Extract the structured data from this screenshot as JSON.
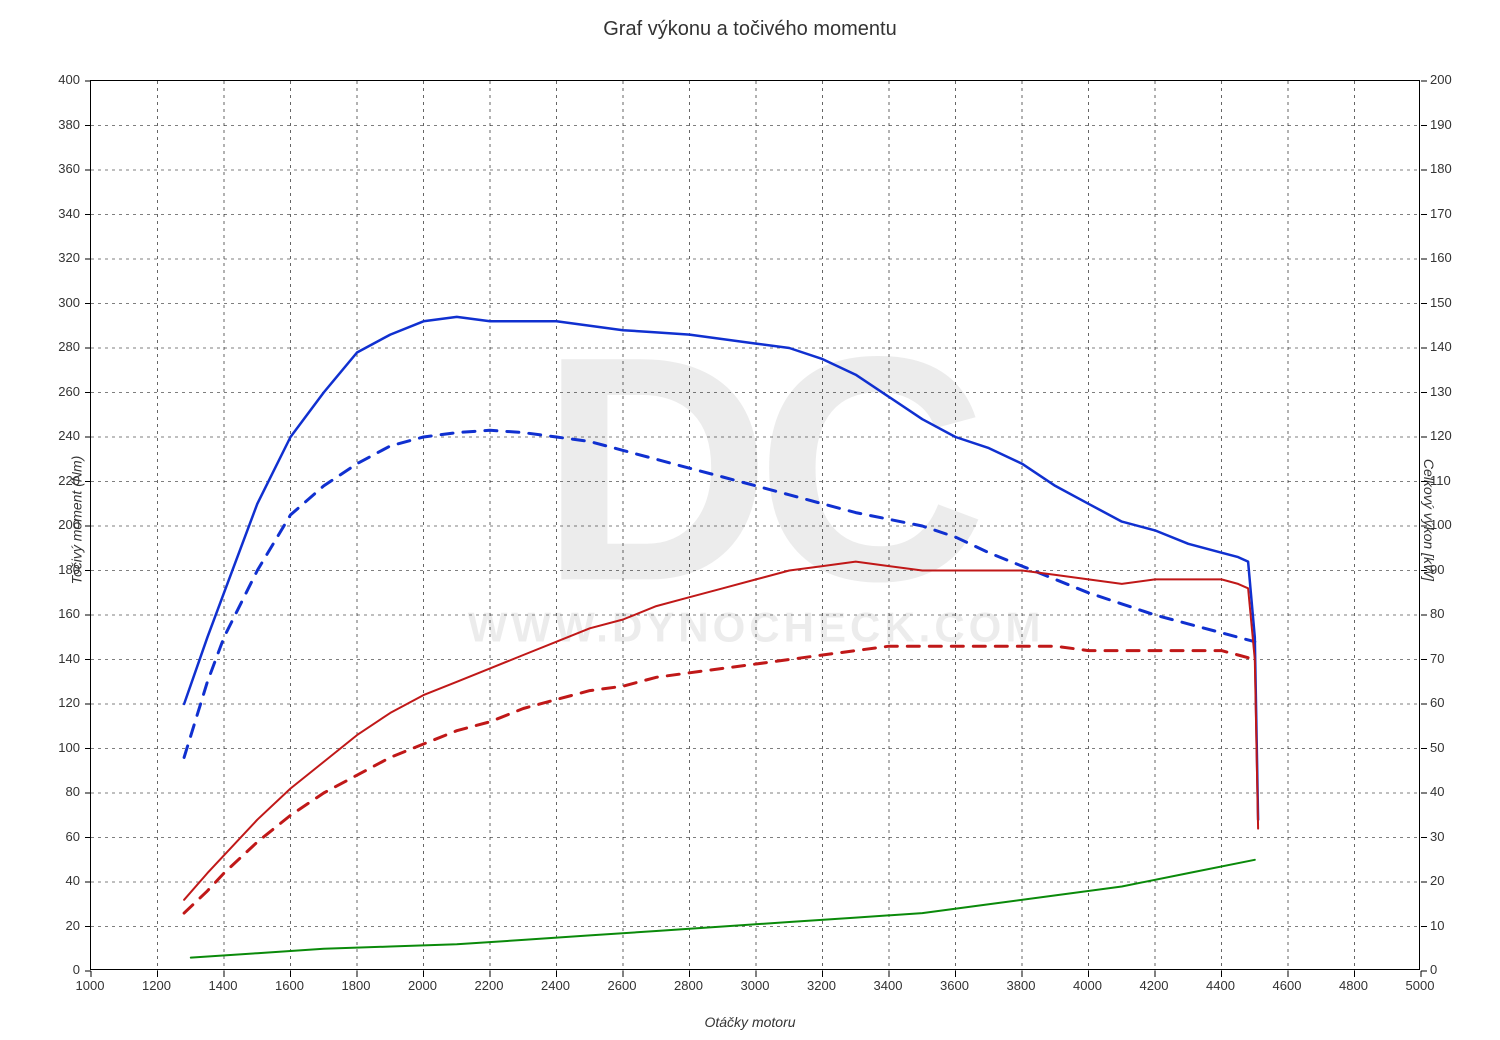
{
  "title": "Graf výkonu a točivého momentu",
  "xlabel": "Otáčky motoru",
  "ylabel_left": "Točivý moment (Nm)",
  "ylabel_right": "Celkový výkon [kW]",
  "watermark_text": "WWW.DYNOCHECK.COM",
  "watermark_logo": "DC",
  "background_color": "#ffffff",
  "grid_color": "#000000",
  "grid_dash": "3,4",
  "border_color": "#000000",
  "title_fontsize": 20,
  "label_fontsize": 14,
  "tick_fontsize": 13,
  "watermark_color": "#e0e0e0",
  "x_axis": {
    "min": 1000,
    "max": 5000,
    "ticks": [
      1000,
      1200,
      1400,
      1600,
      1800,
      2000,
      2200,
      2400,
      2600,
      2800,
      3000,
      3200,
      3400,
      3600,
      3800,
      4000,
      4200,
      4400,
      4600,
      4800,
      5000
    ]
  },
  "y_left": {
    "min": 0,
    "max": 400,
    "ticks": [
      0,
      20,
      40,
      60,
      80,
      100,
      120,
      140,
      160,
      180,
      200,
      220,
      240,
      260,
      280,
      300,
      320,
      340,
      360,
      380,
      400
    ]
  },
  "y_right": {
    "min": 0,
    "max": 200,
    "ticks": [
      0,
      10,
      20,
      30,
      40,
      50,
      60,
      70,
      80,
      90,
      100,
      110,
      120,
      130,
      140,
      150,
      160,
      170,
      180,
      190,
      200
    ]
  },
  "series": [
    {
      "name": "torque_tuned",
      "axis": "left",
      "color": "#1030d0",
      "width": 2.5,
      "dash": "none",
      "points": [
        [
          1280,
          120
        ],
        [
          1350,
          150
        ],
        [
          1400,
          170
        ],
        [
          1500,
          210
        ],
        [
          1600,
          240
        ],
        [
          1700,
          260
        ],
        [
          1800,
          278
        ],
        [
          1900,
          286
        ],
        [
          2000,
          292
        ],
        [
          2100,
          294
        ],
        [
          2200,
          292
        ],
        [
          2300,
          292
        ],
        [
          2400,
          292
        ],
        [
          2500,
          290
        ],
        [
          2600,
          288
        ],
        [
          2700,
          287
        ],
        [
          2800,
          286
        ],
        [
          2900,
          284
        ],
        [
          3000,
          282
        ],
        [
          3100,
          280
        ],
        [
          3200,
          275
        ],
        [
          3300,
          268
        ],
        [
          3400,
          258
        ],
        [
          3500,
          248
        ],
        [
          3600,
          240
        ],
        [
          3700,
          235
        ],
        [
          3800,
          228
        ],
        [
          3900,
          218
        ],
        [
          4000,
          210
        ],
        [
          4100,
          202
        ],
        [
          4200,
          198
        ],
        [
          4300,
          192
        ],
        [
          4400,
          188
        ],
        [
          4450,
          186
        ],
        [
          4480,
          184
        ],
        [
          4500,
          150
        ],
        [
          4510,
          68
        ]
      ]
    },
    {
      "name": "torque_stock",
      "axis": "left",
      "color": "#1030d0",
      "width": 3,
      "dash": "12,10",
      "points": [
        [
          1280,
          96
        ],
        [
          1350,
          130
        ],
        [
          1400,
          150
        ],
        [
          1500,
          180
        ],
        [
          1600,
          205
        ],
        [
          1700,
          218
        ],
        [
          1800,
          228
        ],
        [
          1900,
          236
        ],
        [
          2000,
          240
        ],
        [
          2100,
          242
        ],
        [
          2200,
          243
        ],
        [
          2300,
          242
        ],
        [
          2400,
          240
        ],
        [
          2500,
          238
        ],
        [
          2600,
          234
        ],
        [
          2700,
          230
        ],
        [
          2800,
          226
        ],
        [
          2900,
          222
        ],
        [
          3000,
          218
        ],
        [
          3100,
          214
        ],
        [
          3200,
          210
        ],
        [
          3300,
          206
        ],
        [
          3400,
          203
        ],
        [
          3500,
          200
        ],
        [
          3600,
          195
        ],
        [
          3700,
          188
        ],
        [
          3800,
          182
        ],
        [
          3900,
          176
        ],
        [
          4000,
          170
        ],
        [
          4100,
          165
        ],
        [
          4200,
          160
        ],
        [
          4300,
          156
        ],
        [
          4400,
          152
        ],
        [
          4450,
          150
        ],
        [
          4500,
          148
        ]
      ]
    },
    {
      "name": "power_tuned",
      "axis": "right",
      "color": "#c01818",
      "width": 2,
      "dash": "none",
      "points": [
        [
          1280,
          16
        ],
        [
          1350,
          22
        ],
        [
          1400,
          26
        ],
        [
          1500,
          34
        ],
        [
          1600,
          41
        ],
        [
          1700,
          47
        ],
        [
          1800,
          53
        ],
        [
          1900,
          58
        ],
        [
          2000,
          62
        ],
        [
          2100,
          65
        ],
        [
          2200,
          68
        ],
        [
          2300,
          71
        ],
        [
          2400,
          74
        ],
        [
          2500,
          77
        ],
        [
          2600,
          79
        ],
        [
          2700,
          82
        ],
        [
          2800,
          84
        ],
        [
          2900,
          86
        ],
        [
          3000,
          88
        ],
        [
          3100,
          90
        ],
        [
          3200,
          91
        ],
        [
          3300,
          92
        ],
        [
          3400,
          91
        ],
        [
          3500,
          90
        ],
        [
          3600,
          90
        ],
        [
          3700,
          90
        ],
        [
          3800,
          90
        ],
        [
          3900,
          89
        ],
        [
          4000,
          88
        ],
        [
          4100,
          87
        ],
        [
          4200,
          88
        ],
        [
          4300,
          88
        ],
        [
          4400,
          88
        ],
        [
          4450,
          87
        ],
        [
          4480,
          86
        ],
        [
          4500,
          70
        ],
        [
          4510,
          32
        ]
      ]
    },
    {
      "name": "power_stock",
      "axis": "right",
      "color": "#c01818",
      "width": 3,
      "dash": "12,10",
      "points": [
        [
          1280,
          13
        ],
        [
          1350,
          18
        ],
        [
          1400,
          22
        ],
        [
          1500,
          29
        ],
        [
          1600,
          35
        ],
        [
          1700,
          40
        ],
        [
          1800,
          44
        ],
        [
          1900,
          48
        ],
        [
          2000,
          51
        ],
        [
          2100,
          54
        ],
        [
          2200,
          56
        ],
        [
          2300,
          59
        ],
        [
          2400,
          61
        ],
        [
          2500,
          63
        ],
        [
          2600,
          64
        ],
        [
          2700,
          66
        ],
        [
          2800,
          67
        ],
        [
          2900,
          68
        ],
        [
          3000,
          69
        ],
        [
          3100,
          70
        ],
        [
          3200,
          71
        ],
        [
          3300,
          72
        ],
        [
          3400,
          73
        ],
        [
          3500,
          73
        ],
        [
          3600,
          73
        ],
        [
          3700,
          73
        ],
        [
          3800,
          73
        ],
        [
          3900,
          73
        ],
        [
          4000,
          72
        ],
        [
          4100,
          72
        ],
        [
          4200,
          72
        ],
        [
          4300,
          72
        ],
        [
          4400,
          72
        ],
        [
          4450,
          71
        ],
        [
          4500,
          70
        ]
      ]
    },
    {
      "name": "loss_power",
      "axis": "right",
      "color": "#0a8a0a",
      "width": 2,
      "dash": "none",
      "points": [
        [
          1300,
          3
        ],
        [
          1500,
          4
        ],
        [
          1700,
          5
        ],
        [
          1900,
          5.5
        ],
        [
          2100,
          6
        ],
        [
          2300,
          7
        ],
        [
          2500,
          8
        ],
        [
          2700,
          9
        ],
        [
          2900,
          10
        ],
        [
          3100,
          11
        ],
        [
          3300,
          12
        ],
        [
          3500,
          13
        ],
        [
          3700,
          15
        ],
        [
          3900,
          17
        ],
        [
          4100,
          19
        ],
        [
          4300,
          22
        ],
        [
          4500,
          25
        ]
      ]
    }
  ]
}
